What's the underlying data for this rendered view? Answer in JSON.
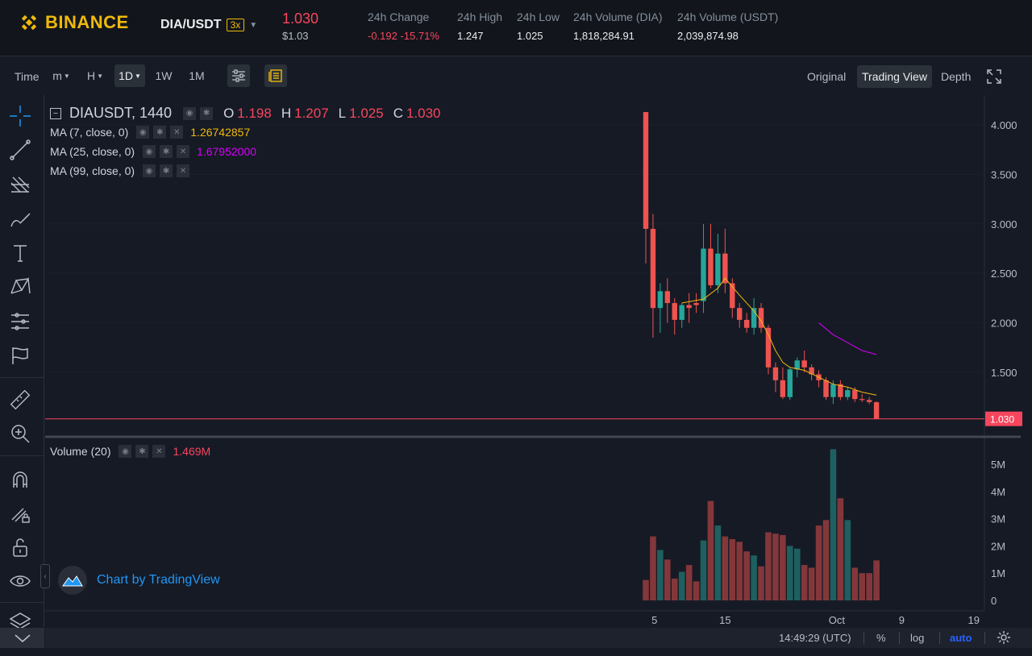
{
  "header": {
    "brand": "BINANCE",
    "pair": "DIA/USDT",
    "leverage": "3x",
    "last_price": "1.030",
    "last_price_usd": "$1.03",
    "stats": [
      {
        "label": "24h Change",
        "value": "-0.192 -15.71%",
        "color": "#f6465d"
      },
      {
        "label": "24h High",
        "value": "1.247"
      },
      {
        "label": "24h Low",
        "value": "1.025"
      },
      {
        "label": "24h Volume (DIA)",
        "value": "1,818,284.91"
      },
      {
        "label": "24h Volume (USDT)",
        "value": "2,039,874.98"
      }
    ]
  },
  "toolbar": {
    "time_label": "Time",
    "intervals": [
      "m",
      "H",
      "1D",
      "1W",
      "1M"
    ],
    "active_interval": "1D",
    "views": [
      "Original",
      "Trading View",
      "Depth"
    ],
    "active_view": "Trading View"
  },
  "legend": {
    "symbol": "DIAUSDT, 1440",
    "o_key": "O",
    "o": "1.198",
    "h_key": "H",
    "h": "1.207",
    "l_key": "L",
    "l": "1.025",
    "c_key": "C",
    "c": "1.030",
    "ma": [
      {
        "label": "MA (7, close, 0)",
        "value": "1.26742857",
        "color": "#f0b90b"
      },
      {
        "label": "MA (25, close, 0)",
        "value": "1.67952000",
        "color": "#d500f9"
      },
      {
        "label": "MA (99, close, 0)",
        "value": ""
      }
    ],
    "volume_label": "Volume (20)",
    "volume_value": "1.469M"
  },
  "axes": {
    "price_ticks": [
      "4.000",
      "3.500",
      "3.000",
      "2.500",
      "2.000",
      "1.500"
    ],
    "last_price_tag": "1.030",
    "volume_ticks": [
      "5M",
      "4M",
      "3M",
      "2M",
      "1M",
      "0"
    ],
    "date_ticks": [
      "5",
      "15",
      "Oct",
      "9",
      "19"
    ]
  },
  "bottom": {
    "time": "14:49:29 (UTC)",
    "percent": "%",
    "log": "log",
    "auto": "auto"
  },
  "watermark": "Chart by TradingView",
  "colors": {
    "up": "#26a69a",
    "down": "#ef5350",
    "ma7": "#f0b90b",
    "ma25": "#d500f9",
    "accent": "#f0b90b"
  },
  "chart_data": {
    "type": "candlestick",
    "ylim": [
      1.0,
      4.25
    ],
    "volume_ylim": [
      0,
      5.8
    ],
    "candles": [
      {
        "o": 4.13,
        "h": 4.13,
        "l": 2.6,
        "c": 2.95,
        "v": 0.75
      },
      {
        "o": 2.95,
        "h": 3.1,
        "l": 1.85,
        "c": 2.15,
        "v": 2.35
      },
      {
        "o": 2.15,
        "h": 2.4,
        "l": 1.9,
        "c": 2.32,
        "v": 1.85
      },
      {
        "o": 2.32,
        "h": 2.45,
        "l": 2.0,
        "c": 2.2,
        "v": 1.5
      },
      {
        "o": 2.2,
        "h": 2.25,
        "l": 1.88,
        "c": 2.03,
        "v": 0.8
      },
      {
        "o": 2.03,
        "h": 2.2,
        "l": 1.95,
        "c": 2.18,
        "v": 1.05
      },
      {
        "o": 2.18,
        "h": 2.3,
        "l": 2.0,
        "c": 2.15,
        "v": 1.3
      },
      {
        "o": 2.2,
        "h": 2.3,
        "l": 2.1,
        "c": 2.18,
        "v": 0.7
      },
      {
        "o": 2.22,
        "h": 3.0,
        "l": 2.1,
        "c": 2.75,
        "v": 2.2
      },
      {
        "o": 2.75,
        "h": 3.0,
        "l": 2.35,
        "c": 2.38,
        "v": 3.65
      },
      {
        "o": 2.38,
        "h": 2.9,
        "l": 2.3,
        "c": 2.7,
        "v": 2.75
      },
      {
        "o": 2.7,
        "h": 2.95,
        "l": 2.3,
        "c": 2.4,
        "v": 2.35
      },
      {
        "o": 2.4,
        "h": 2.45,
        "l": 2.05,
        "c": 2.15,
        "v": 2.25
      },
      {
        "o": 2.15,
        "h": 2.2,
        "l": 1.95,
        "c": 2.03,
        "v": 2.15
      },
      {
        "o": 2.03,
        "h": 2.1,
        "l": 1.9,
        "c": 1.95,
        "v": 1.8
      },
      {
        "o": 1.95,
        "h": 2.25,
        "l": 1.88,
        "c": 2.15,
        "v": 1.65
      },
      {
        "o": 2.15,
        "h": 2.2,
        "l": 1.9,
        "c": 1.95,
        "v": 1.25
      },
      {
        "o": 1.95,
        "h": 1.98,
        "l": 1.48,
        "c": 1.55,
        "v": 2.5
      },
      {
        "o": 1.55,
        "h": 1.6,
        "l": 1.3,
        "c": 1.42,
        "v": 2.45
      },
      {
        "o": 1.42,
        "h": 1.55,
        "l": 1.23,
        "c": 1.25,
        "v": 2.4
      },
      {
        "o": 1.25,
        "h": 1.55,
        "l": 1.22,
        "c": 1.53,
        "v": 2.0
      },
      {
        "o": 1.53,
        "h": 1.65,
        "l": 1.45,
        "c": 1.62,
        "v": 1.9
      },
      {
        "o": 1.62,
        "h": 1.72,
        "l": 1.5,
        "c": 1.55,
        "v": 1.3
      },
      {
        "o": 1.55,
        "h": 1.58,
        "l": 1.42,
        "c": 1.48,
        "v": 1.2
      },
      {
        "o": 1.48,
        "h": 1.52,
        "l": 1.35,
        "c": 1.42,
        "v": 2.75
      },
      {
        "o": 1.42,
        "h": 1.45,
        "l": 1.22,
        "c": 1.25,
        "v": 2.95
      },
      {
        "o": 1.25,
        "h": 1.42,
        "l": 1.18,
        "c": 1.38,
        "v": 5.55
      },
      {
        "o": 1.38,
        "h": 1.42,
        "l": 1.22,
        "c": 1.25,
        "v": 3.75
      },
      {
        "o": 1.25,
        "h": 1.35,
        "l": 1.22,
        "c": 1.32,
        "v": 2.95
      },
      {
        "o": 1.32,
        "h": 1.35,
        "l": 1.2,
        "c": 1.23,
        "v": 1.2
      },
      {
        "o": 1.23,
        "h": 1.28,
        "l": 1.2,
        "c": 1.22,
        "v": 1.0
      },
      {
        "o": 1.22,
        "h": 1.25,
        "l": 1.18,
        "c": 1.2,
        "v": 1.0
      },
      {
        "o": 1.198,
        "h": 1.207,
        "l": 1.025,
        "c": 1.03,
        "v": 1.469
      }
    ],
    "ma7": [
      [
        5,
        2.2
      ],
      [
        8,
        2.24
      ],
      [
        10,
        2.35
      ],
      [
        11,
        2.45
      ],
      [
        13,
        2.28
      ],
      [
        15,
        2.12
      ],
      [
        16,
        2.02
      ],
      [
        17,
        1.88
      ],
      [
        18,
        1.72
      ],
      [
        19,
        1.6
      ],
      [
        20,
        1.55
      ],
      [
        22,
        1.52
      ],
      [
        24,
        1.45
      ],
      [
        26,
        1.38
      ],
      [
        28,
        1.35
      ],
      [
        30,
        1.3
      ],
      [
        32,
        1.27
      ]
    ],
    "ma25": [
      [
        24,
        2.0
      ],
      [
        26,
        1.88
      ],
      [
        28,
        1.8
      ],
      [
        30,
        1.72
      ],
      [
        32,
        1.68
      ]
    ]
  }
}
